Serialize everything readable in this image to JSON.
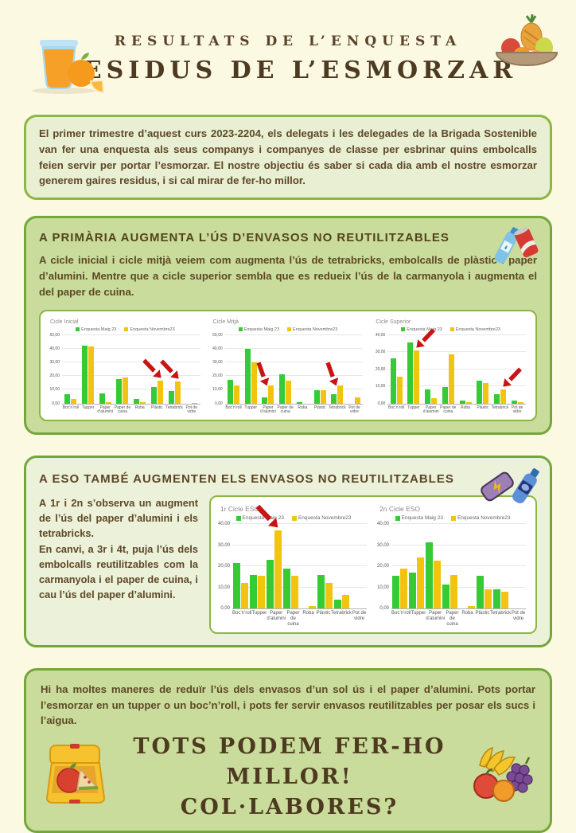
{
  "header": {
    "subtitle": "RESULTATS DE L’ENQUESTA",
    "title": "RESIDUS DE L’ESMORZAR"
  },
  "intro": {
    "text": "El primer trimestre d’aquest curs 2023-2204, els delegats i les delegades de la Brigada Sostenible van fer una enquesta als seus companys i companyes de classe per esbrinar quins embolcalls feien servir per portar l’esmorzar. El nostre objectiu és saber si cada dia amb el nostre esmorzar generem gaires residus, i si cal mirar de fer-ho millor."
  },
  "primaria": {
    "title": "A PRIMÀRIA AUGMENTA L’ÚS D’ENVASOS NO REUTILITZABLES",
    "text": "A cicle inicial i cicle mitjà veiem com augmenta l’ús de tetrabricks, embolcalls de plàstic i paper d’alumini. Mentre que a cicle superior sembla que es redueix l’ús de la carmanyola i augmenta el del paper de cuina."
  },
  "eso": {
    "title": "A ESO TAMBÉ AUGMENTEN ELS ENVASOS NO REUTILITZABLES",
    "text1": "A 1r i 2n s’observa un augment de l’ús del paper d’alumini i els tetrabricks.",
    "text2": "En canvi, a 3r i 4t, puja l’ús dels embolcalls reutilitzables com la carmanyola i el paper de cuina, i cau l’ús del paper d’alumini."
  },
  "footer": {
    "text": "Hi ha moltes maneres de reduïr l’ús dels envasos d’un sol ús i el paper d’alumini. Pots portar l’esmorzar en un tupper o un boc’n’roll, i pots fer servir envasos reutilitzables per posar els sucs i l’aigua.",
    "cta1": "TOTS PODEM FER-HO MILLOR!",
    "cta2": "COL·LABORES?"
  },
  "icons": {
    "header_left": "orange-juice-icon",
    "header_right": "fruit-bowl-icon",
    "primaria": "bottle-and-can-icon",
    "eso": "energy-bar-and-bottle-icon",
    "footer_left": "lunchbox-icon",
    "footer_right": "fruits-icon"
  },
  "colors": {
    "page_bg": "#fcf9e3",
    "box_light_green": "#e9efd3",
    "box_medium_green": "#c9dc9b",
    "border_green": "#74a63b",
    "bar_green": "#34cb34",
    "bar_yellow": "#f2c410",
    "arrow_red": "#c81414",
    "text_brown": "#5d4826",
    "title_brown": "#4d3a20"
  },
  "chart_data": [
    {
      "type": "bar",
      "group": "primaria",
      "title": "Cicle Inicial",
      "categories": [
        "Boc’n’roll",
        "Tupper",
        "Paper d’alumini",
        "Paper de cuina",
        "Roba",
        "Plàstic",
        "Tetrabrick",
        "Pot de vidre"
      ],
      "series": [
        {
          "name": "Enquesta Maig 23",
          "color": "#34cb34",
          "values": [
            6.5,
            42,
            7.5,
            18,
            3.5,
            12,
            9,
            0
          ]
        },
        {
          "name": "Enquesta Novembre23",
          "color": "#f2c410",
          "values": [
            3,
            41.5,
            1,
            19,
            1,
            16.5,
            16,
            0.5
          ]
        }
      ],
      "ylim": [
        0,
        50
      ],
      "yticks": [
        "0,00",
        "10,00",
        "20,00",
        "30,00",
        "40,00",
        "50,00"
      ],
      "legend_position": "top",
      "grid": true,
      "arrows": [
        {
          "index": 5,
          "category": "Plàstic",
          "direction": "down-right"
        },
        {
          "index": 6,
          "category": "Tetrabrick",
          "direction": "down-right"
        }
      ]
    },
    {
      "type": "bar",
      "group": "primaria",
      "title": "Cicle Mitjà",
      "categories": [
        "Boc’n’roll",
        "Tupper",
        "Paper d’alumini",
        "Paper de cuina",
        "Roba",
        "Plàstic",
        "Tetrabrick",
        "Pot de vidre"
      ],
      "series": [
        {
          "name": "Enquesta Maig 23",
          "color": "#34cb34",
          "values": [
            17,
            40,
            4.5,
            21.5,
            1,
            9.5,
            6.5,
            0
          ]
        },
        {
          "name": "Enquesta Novembre23",
          "color": "#f2c410",
          "values": [
            13,
            30,
            13,
            16.5,
            0,
            9.5,
            13,
            4.5
          ]
        }
      ],
      "ylim": [
        0,
        50
      ],
      "yticks": [
        "0,00",
        "10,00",
        "20,00",
        "30,00",
        "40,00",
        "50,00"
      ],
      "legend_position": "top",
      "grid": true,
      "arrows": [
        {
          "index": 2,
          "category": "Paper d’alumini",
          "direction": "down"
        },
        {
          "index": 6,
          "category": "Tetrabrick",
          "direction": "down"
        }
      ]
    },
    {
      "type": "bar",
      "group": "primaria",
      "title": "Cicle Superior",
      "categories": [
        "Boc’n’roll",
        "Tupper",
        "Paper d’alumini",
        "Paper de cuina",
        "Roba",
        "Plàstic",
        "Tetrabrick",
        "Pot de vidre"
      ],
      "series": [
        {
          "name": "Enquesta Maig 23",
          "color": "#34cb34",
          "values": [
            26.5,
            35.5,
            8,
            9.5,
            1.5,
            13.5,
            5.5,
            1.5
          ]
        },
        {
          "name": "Enquesta Novembre23",
          "color": "#f2c410",
          "values": [
            15.5,
            31,
            3,
            28.5,
            0.5,
            12,
            8,
            0.5
          ]
        }
      ],
      "ylim": [
        0,
        40
      ],
      "yticks": [
        "0,00",
        "10,00",
        "20,00",
        "30,00",
        "40,00"
      ],
      "legend_position": "top",
      "grid": true,
      "arrows": [
        {
          "index": 1,
          "category": "Tupper",
          "direction": "down-left"
        },
        {
          "index": 6,
          "category": "Tetrabrick",
          "direction": "down-left"
        }
      ]
    },
    {
      "type": "bar",
      "group": "eso",
      "title": "1r Cicle ESO",
      "categories": [
        "Boc’n’roll",
        "Tupper",
        "Paper d’alumini",
        "Paper de cuina",
        "Roba",
        "Plàstic",
        "Tetrabrick",
        "Pot de vidre"
      ],
      "series": [
        {
          "name": "Enquesta Maig 23",
          "color": "#34cb34",
          "values": [
            21.5,
            16,
            23,
            19,
            0,
            16,
            4,
            0
          ]
        },
        {
          "name": "Enquesta Novembre23",
          "color": "#f2c410",
          "values": [
            12,
            15.5,
            37,
            15.5,
            1,
            12,
            6.5,
            0
          ]
        }
      ],
      "ylim": [
        0,
        40
      ],
      "yticks": [
        "0,00",
        "10,00",
        "20,00",
        "30,00",
        "40,00"
      ],
      "legend_position": "top",
      "grid": true,
      "arrows": [
        {
          "index": 2,
          "category": "Paper d’alumini",
          "direction": "down-right"
        }
      ]
    },
    {
      "type": "bar",
      "group": "eso",
      "title": "2n Cicle ESO",
      "categories": [
        "Boc’n’roll",
        "Tupper",
        "Paper d’alumini",
        "Paper de cuina",
        "Roba",
        "Plàstic",
        "Tetrabrick",
        "Pot de vidre"
      ],
      "series": [
        {
          "name": "Enquesta Maig 23",
          "color": "#34cb34",
          "values": [
            15.5,
            17,
            31.5,
            11.5,
            0,
            15.5,
            9,
            0
          ]
        },
        {
          "name": "Enquesta Novembre23",
          "color": "#f2c410",
          "values": [
            19,
            24,
            22.5,
            16,
            1,
            9,
            8,
            0
          ]
        }
      ],
      "ylim": [
        0,
        40
      ],
      "yticks": [
        "0,00",
        "10,00",
        "20,00",
        "30,00",
        "40,00"
      ],
      "legend_position": "top",
      "grid": true,
      "arrows": []
    }
  ]
}
